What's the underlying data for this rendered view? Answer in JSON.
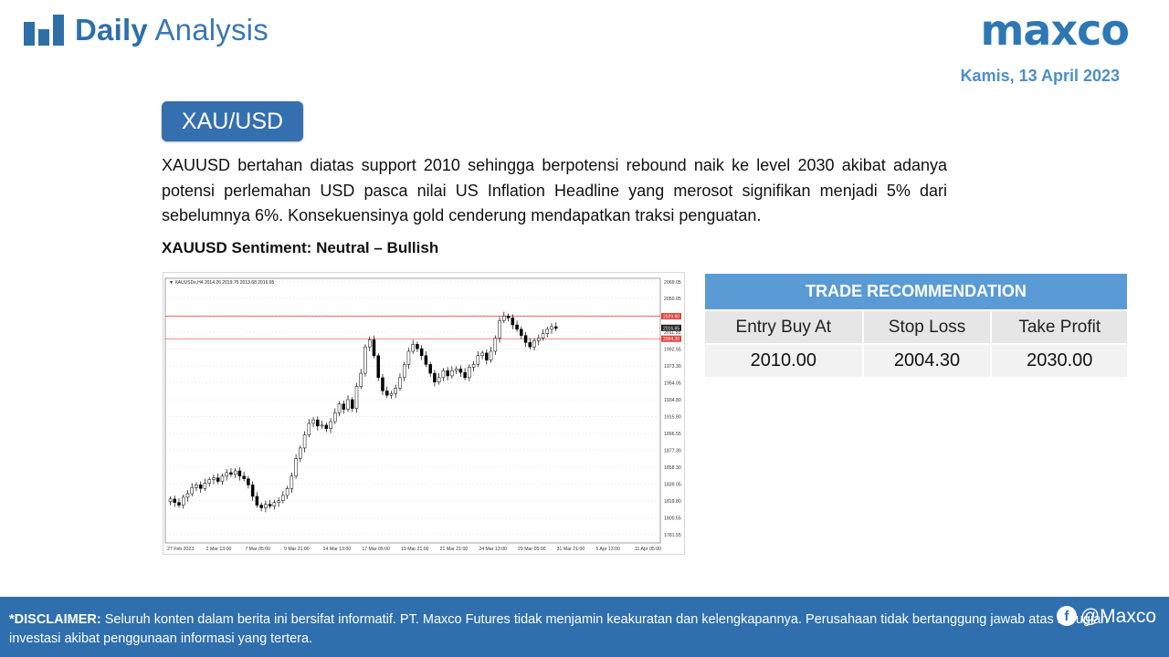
{
  "header": {
    "title_bold": "Daily",
    "title_light": "Analysis",
    "brand": "maxco",
    "date": "Kamis, 13 April 2023"
  },
  "pair": "XAU/USD",
  "analysis_text": "XAUUSD bertahan diatas support 2010 sehingga berpotensi rebound naik ke level 2030 akibat adanya potensi perlemahan USD pasca nilai US Inflation Headline yang merosot signifikan menjadi 5% dari sebelumnya 6%. Konsekuensinya gold cenderung mendapatkan traksi penguatan.",
  "sentiment": "XAUUSD Sentiment: Neutral – Bullish",
  "trade": {
    "title": "TRADE RECOMMENDATION",
    "headers": [
      "Entry Buy At",
      "Stop Loss",
      "Take Profit"
    ],
    "values": [
      "2010.00",
      "2004.30",
      "2030.00"
    ]
  },
  "footer": {
    "disclaimer_label": "*DISCLAIMER:",
    "disclaimer_text": " Seluruh konten dalam berita ini bersifat informatif. PT. Maxco Futures tidak menjamin keakuratan dan kelengkapannya. Perusahaan tidak bertanggung jawab atas kerugian investasi akibat penggunaan informasi yang tertera.",
    "social_handle": "@Maxco"
  },
  "chart_data": {
    "type": "line",
    "title": "XAUUSDx,H4  2014.26 2019.75 2013.68 2016.65",
    "y_ticks": [
      "2069.05",
      "2050.05",
      "2031.05",
      "2011.55",
      "1992.55",
      "1973.30",
      "1954.05",
      "1934.80",
      "1915.80",
      "1896.55",
      "1877.30",
      "1858.30",
      "1839.05",
      "1819.80",
      "1800.55",
      "1781.55"
    ],
    "x_ticks": [
      "27 Feb 2023",
      "2 Mar 13:00",
      "7 Mar 05:00",
      "9 Mar 21:00",
      "14 Mar 13:00",
      "17 Mar 05:00",
      "19 Mar 21:00",
      "21 Mar 21:00",
      "24 Mar 13:00",
      "29 Mar 05:00",
      "31 Mar 21:00",
      "5 Apr 13:00",
      "11 Apr 05:00"
    ],
    "ylim": [
      1772,
      2073
    ],
    "price_tags": [
      {
        "value": 2029.9,
        "label": "2029.90",
        "color": "#e0403a"
      },
      {
        "value": 2016.65,
        "label": "2016.65",
        "color": "#222222"
      },
      {
        "value": 2004.3,
        "label": "2004.30",
        "color": "#e0403a"
      }
    ],
    "series": [
      {
        "values": [
          1822,
          1818,
          1815,
          1824,
          1828,
          1835,
          1838,
          1834,
          1840,
          1844,
          1846,
          1842,
          1848,
          1852,
          1850,
          1854,
          1848,
          1845,
          1838,
          1825,
          1815,
          1812,
          1816,
          1814,
          1818,
          1820,
          1826,
          1834,
          1848,
          1868,
          1880,
          1895,
          1908,
          1912,
          1905,
          1906,
          1902,
          1910,
          1920,
          1930,
          1924,
          1935,
          1925,
          1950,
          1965,
          1995,
          2003,
          1985,
          1960,
          1945,
          1940,
          1942,
          1948,
          1960,
          1975,
          1990,
          1998,
          1993,
          1985,
          1975,
          1965,
          1955,
          1960,
          1968,
          1962,
          1968,
          1970,
          1966,
          1960,
          1972,
          1975,
          1985,
          1988,
          1980,
          1990,
          2005,
          2025,
          2030,
          2028,
          2020,
          2015,
          2008,
          2000,
          1995,
          2002,
          2005,
          2010,
          2015,
          2018,
          2016
        ]
      }
    ]
  }
}
